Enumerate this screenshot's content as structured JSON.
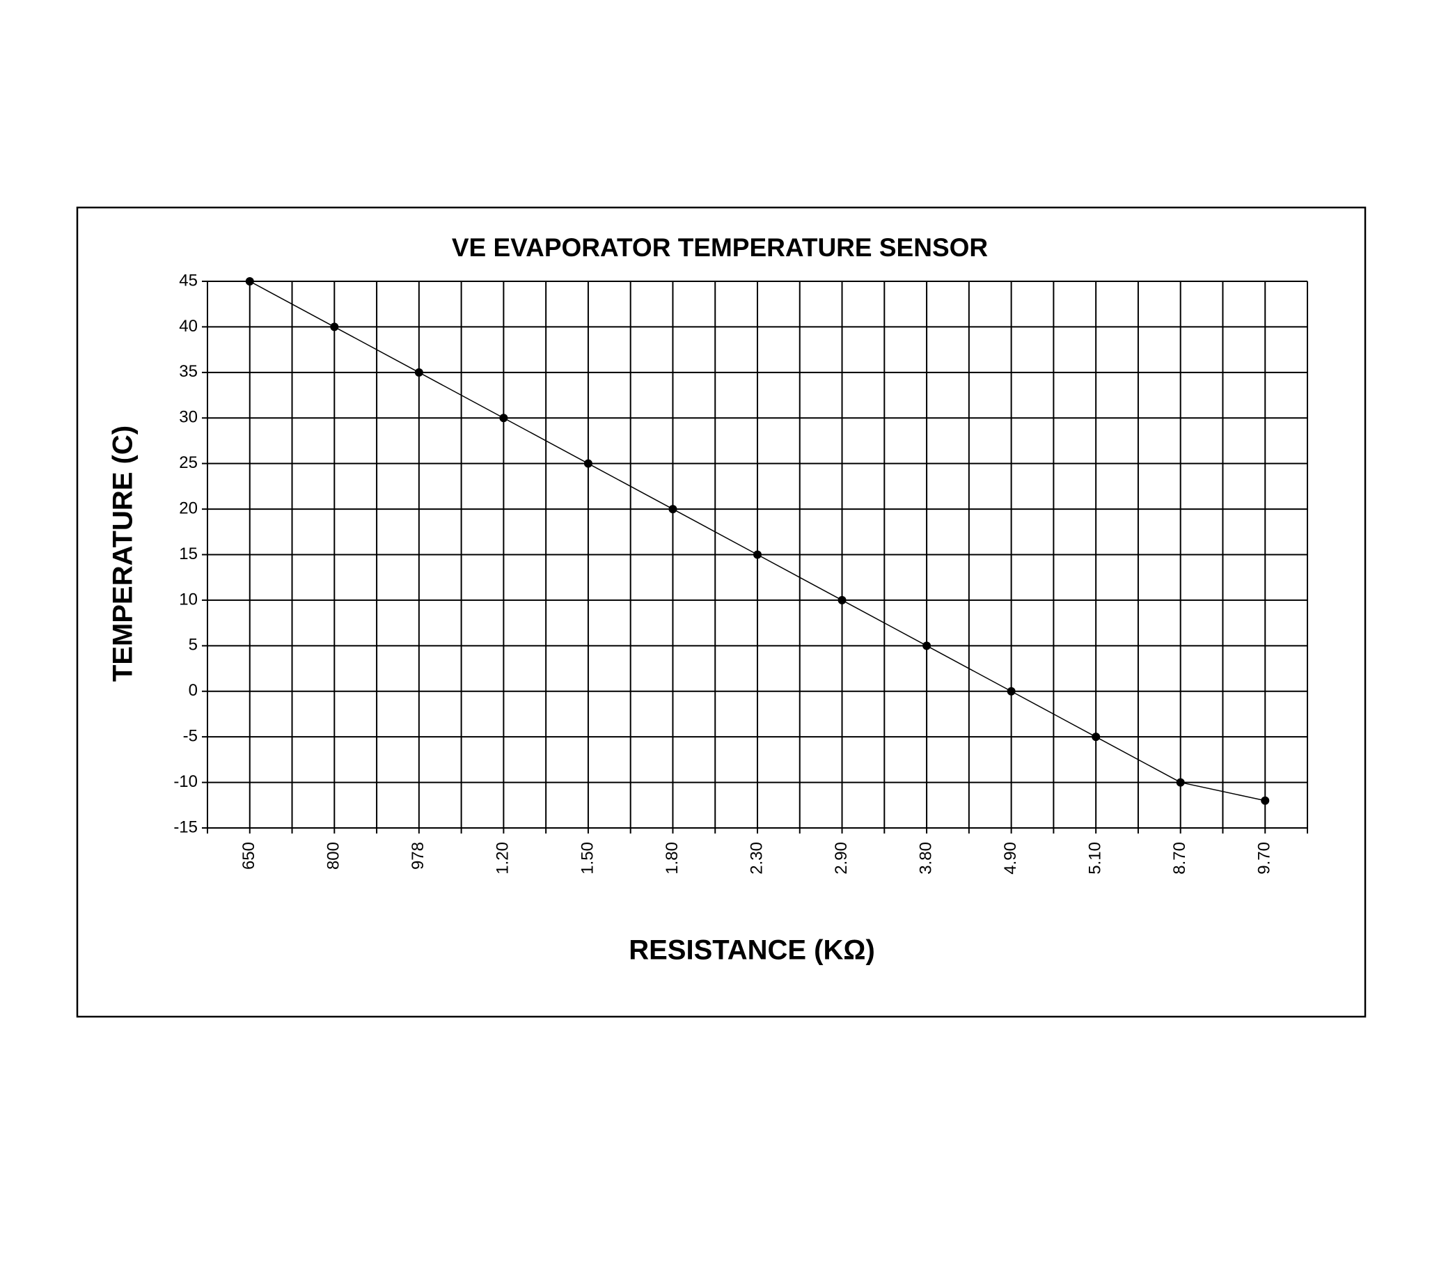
{
  "chart_data": {
    "type": "line",
    "title": "VE EVAPORATOR TEMPERATURE SENSOR",
    "x_label": "RESISTANCE (KΩ)",
    "y_label": "TEMPERATURE (C)",
    "categories": [
      "650",
      "800",
      "978",
      "1.20",
      "1.50",
      "1.80",
      "2.30",
      "2.90",
      "3.80",
      "4.90",
      "5.10",
      "8.70",
      "9.70"
    ],
    "values": [
      45,
      40,
      35,
      30,
      25,
      20,
      15,
      10,
      5,
      0,
      -5,
      -10,
      -12
    ],
    "color": "#000000",
    "ylim": [
      -15,
      45
    ],
    "yticks": [
      -15,
      -10,
      -5,
      0,
      5,
      10,
      15,
      20,
      25,
      30,
      35,
      40,
      45
    ],
    "grid": true
  }
}
